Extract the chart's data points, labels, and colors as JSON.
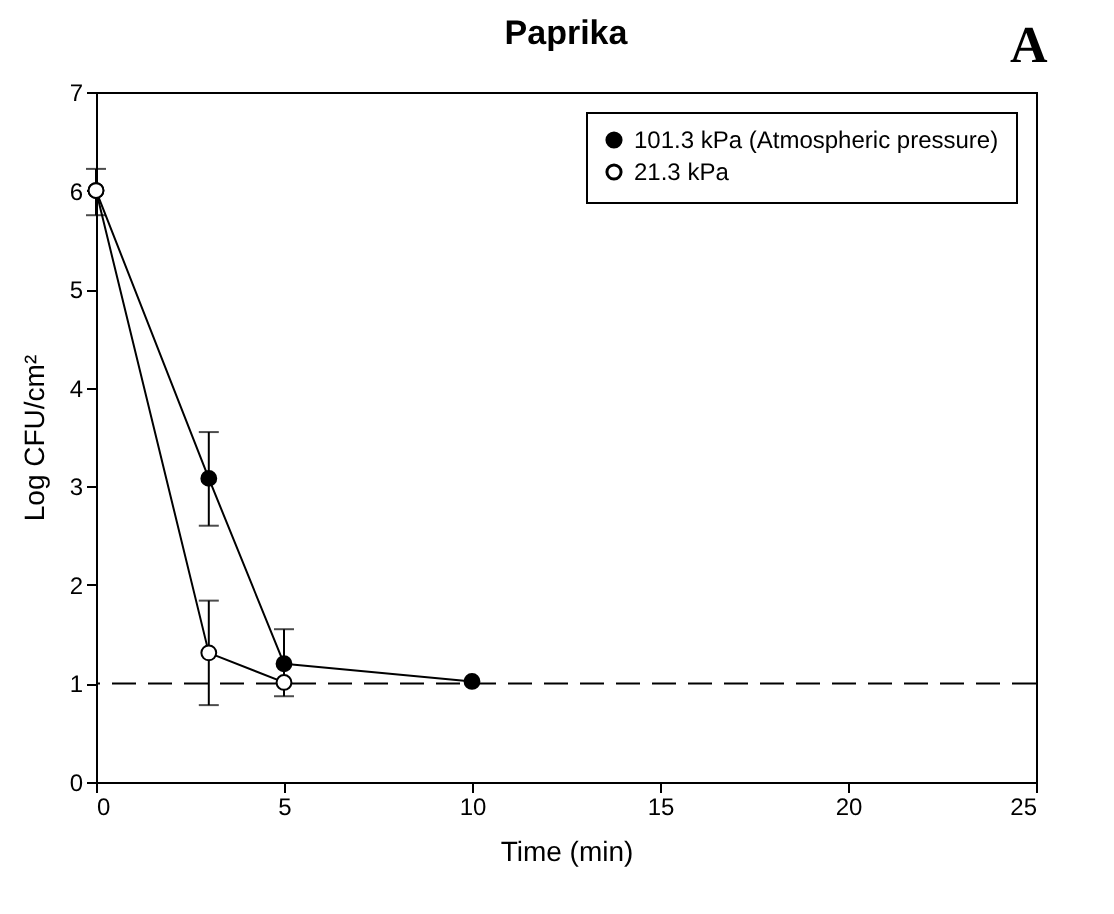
{
  "chart_data": {
    "type": "line",
    "title": "Paprika",
    "xlabel": "Time (min)",
    "ylabel": "Log CFU/cm²",
    "annotations": [
      "A"
    ],
    "xlim": [
      0,
      25
    ],
    "xticks": [
      0,
      5,
      10,
      15,
      20,
      25
    ],
    "ylim": [
      0,
      7
    ],
    "yticks": [
      0,
      1,
      2,
      3,
      4,
      5,
      6,
      7
    ],
    "grid": false,
    "legend": "top right",
    "marker": "circle",
    "ref_lines": [
      {
        "axis": "y",
        "value": 1,
        "line_style": "dashed",
        "color": "#000000"
      }
    ],
    "series": [
      {
        "name": "101.3 kPa (Atmospheric pressure)",
        "color": "#000000",
        "x": [
          0,
          3,
          5,
          10
        ],
        "values": [
          6.0,
          3.08,
          1.2,
          1.02
        ],
        "errors": [
          [
            5.75,
            6.22
          ],
          [
            2.6,
            3.55
          ],
          [
            0.87,
            1.55
          ],
          null
        ]
      },
      {
        "name": "21.3 kPa",
        "color": "#000000",
        "x": [
          0,
          3,
          5
        ],
        "values": [
          6.0,
          1.31,
          1.01
        ],
        "errors": [
          null,
          [
            0.78,
            1.84
          ],
          null
        ]
      }
    ]
  }
}
